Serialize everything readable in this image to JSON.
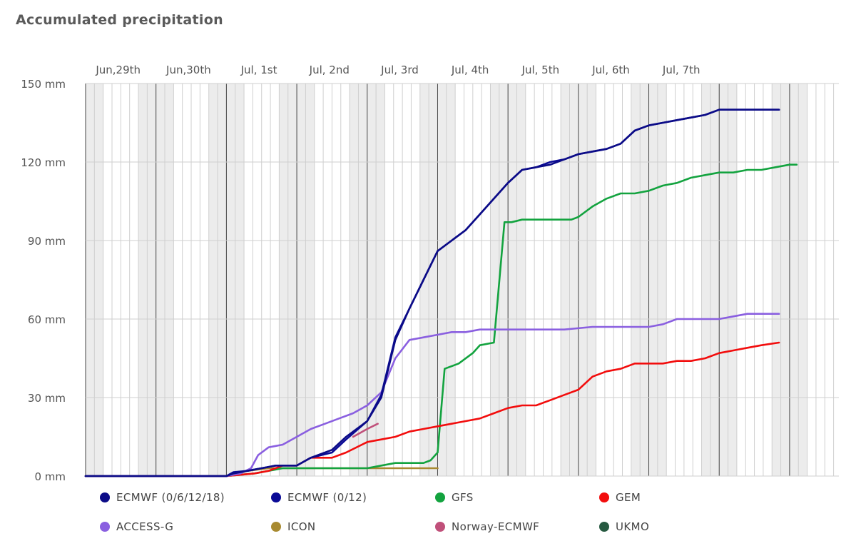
{
  "chart_data": {
    "type": "line",
    "title": "Accumulated precipitation",
    "ylim": [
      0,
      150
    ],
    "yticks": [
      0,
      30,
      60,
      90,
      120,
      150
    ],
    "ytick_labels": [
      "0 mm",
      "30 mm",
      "60 mm",
      "90 mm",
      "120 mm",
      "150 mm"
    ],
    "xlim": [
      -1,
      9.7
    ],
    "day_labels": [
      {
        "x": 0,
        "label": "Jun,29th"
      },
      {
        "x": 1,
        "label": "Jun,30th"
      },
      {
        "x": 2,
        "label": "Jul, 1st"
      },
      {
        "x": 3,
        "label": "Jul, 2nd"
      },
      {
        "x": 4,
        "label": "Jul, 3rd"
      },
      {
        "x": 5,
        "label": "Jul, 4th"
      },
      {
        "x": 6,
        "label": "Jul, 5th"
      },
      {
        "x": 7,
        "label": "Jul, 6th"
      },
      {
        "x": 8,
        "label": "Jul, 7th"
      }
    ],
    "series": [
      {
        "name": "ECMWF (0/6/12/18)",
        "color": "#0b0b87",
        "x": [
          -1,
          1.0,
          1.1,
          1.3,
          1.5,
          1.7,
          2.0,
          2.2,
          2.5,
          2.7,
          3.0,
          3.2,
          3.4,
          3.6,
          3.8,
          4.0,
          4.2,
          4.4,
          4.6,
          4.8,
          5.0,
          5.2,
          5.4,
          5.6,
          5.8,
          6.0,
          6.2,
          6.4,
          6.6,
          6.8,
          7.0,
          7.2,
          7.4,
          7.6,
          7.8,
          8.0,
          8.2,
          8.4,
          8.6,
          8.85
        ],
        "y": [
          0,
          0,
          1,
          2,
          3,
          4,
          4,
          7,
          10,
          15,
          21,
          30,
          52,
          64,
          75,
          86,
          90,
          94,
          100,
          106,
          112,
          117,
          118,
          119,
          121,
          123,
          124,
          125,
          127,
          132,
          134,
          135,
          136,
          137,
          138,
          140,
          140,
          140,
          140,
          140
        ]
      },
      {
        "name": "ECMWF (0/12)",
        "color": "#0a0a96",
        "x": [
          -1,
          1.0,
          1.1,
          1.3,
          1.5,
          1.7,
          2.0,
          2.2,
          2.5,
          2.7,
          3.0,
          3.2,
          3.4,
          3.6,
          3.8,
          4.0,
          4.2,
          4.4,
          4.6,
          4.8,
          5.0,
          5.2,
          5.4,
          5.6,
          5.8,
          6.0,
          6.2,
          6.4,
          6.6,
          6.8,
          7.0,
          7.2,
          7.4,
          7.6,
          7.8,
          8.0,
          8.2,
          8.4,
          8.6,
          8.85
        ],
        "y": [
          0,
          0,
          1.5,
          2,
          3,
          4,
          4,
          7,
          9,
          14,
          21,
          31,
          53,
          64,
          75,
          86,
          90,
          94,
          100,
          106,
          112,
          117,
          118,
          120,
          121,
          123,
          124,
          125,
          127,
          132,
          134,
          135,
          136,
          137,
          138,
          140,
          140,
          140,
          140,
          140
        ]
      },
      {
        "name": "GFS",
        "color": "#13a33f",
        "x": [
          -1,
          1.0,
          1.2,
          1.4,
          1.6,
          1.8,
          2.0,
          2.5,
          3.0,
          3.2,
          3.4,
          3.6,
          3.8,
          3.9,
          4.0,
          4.1,
          4.3,
          4.5,
          4.6,
          4.8,
          4.95,
          5.05,
          5.2,
          5.35,
          5.5,
          5.7,
          5.9,
          6.0,
          6.2,
          6.4,
          6.6,
          6.8,
          7.0,
          7.2,
          7.4,
          7.6,
          7.8,
          8.0,
          8.2,
          8.4,
          8.6,
          8.8,
          9.0,
          9.1
        ],
        "y": [
          0,
          0,
          0.5,
          1,
          2,
          3,
          3,
          3,
          3,
          4,
          5,
          5,
          5,
          6,
          9,
          41,
          43,
          47,
          50,
          51,
          97,
          97,
          98,
          98,
          98,
          98,
          98,
          99,
          103,
          106,
          108,
          108,
          109,
          111,
          112,
          114,
          115,
          116,
          116,
          117,
          117,
          118,
          119,
          119
        ]
      },
      {
        "name": "GEM",
        "color": "#f20d0d",
        "x": [
          -1,
          1.0,
          1.2,
          1.4,
          1.6,
          1.8,
          2.0,
          2.2,
          2.5,
          2.7,
          3.0,
          3.2,
          3.4,
          3.6,
          3.8,
          4.0,
          4.2,
          4.4,
          4.6,
          4.8,
          5.0,
          5.2,
          5.4,
          5.6,
          5.8,
          6.0,
          6.2,
          6.4,
          6.6,
          6.8,
          7.0,
          7.2,
          7.4,
          7.6,
          7.8,
          8.0,
          8.2,
          8.4,
          8.6,
          8.85
        ],
        "y": [
          0,
          0,
          0.5,
          1,
          2,
          4,
          4,
          7,
          7,
          9,
          13,
          14,
          15,
          17,
          18,
          19,
          20,
          21,
          22,
          24,
          26,
          27,
          27,
          29,
          31,
          33,
          38,
          40,
          41,
          43,
          43,
          43,
          44,
          44,
          45,
          47,
          48,
          49,
          50,
          51
        ]
      },
      {
        "name": "ACCESS-G",
        "color": "#8a5fe0",
        "x": [
          -1,
          1.0,
          1.2,
          1.35,
          1.45,
          1.6,
          1.8,
          2.0,
          2.2,
          2.4,
          2.6,
          2.8,
          3.0,
          3.2,
          3.4,
          3.6,
          3.8,
          4.0,
          4.2,
          4.4,
          4.6,
          4.8,
          5.0,
          5.4,
          5.8,
          6.2,
          6.6,
          7.0,
          7.2,
          7.4,
          7.6,
          7.8,
          8.0,
          8.2,
          8.4,
          8.6,
          8.85
        ],
        "y": [
          0,
          0,
          1,
          3,
          8,
          11,
          12,
          15,
          18,
          20,
          22,
          24,
          27,
          32,
          45,
          52,
          53,
          54,
          55,
          55,
          56,
          56,
          56,
          56,
          56,
          57,
          57,
          57,
          58,
          60,
          60,
          60,
          60,
          61,
          62,
          62,
          62
        ]
      },
      {
        "name": "ICON",
        "color": "#a88a30",
        "x": [
          -1,
          1.0,
          1.3,
          1.6,
          2.0,
          2.5,
          3.0,
          3.5,
          4.0
        ],
        "y": [
          0,
          0,
          2,
          3,
          3,
          3,
          3,
          3,
          3
        ]
      },
      {
        "name": "Norway-ECMWF",
        "color": "#c0507a",
        "x": [
          2.8,
          3.0,
          3.15
        ],
        "y": [
          15,
          18,
          20
        ]
      },
      {
        "name": "UKMO",
        "color": "#265940",
        "x": [],
        "y": []
      }
    ],
    "legend": [
      {
        "name": "ECMWF (0/6/12/18)",
        "color": "#0b0b87"
      },
      {
        "name": "ECMWF (0/12)",
        "color": "#0a0a96"
      },
      {
        "name": "GFS",
        "color": "#13a33f"
      },
      {
        "name": "GEM",
        "color": "#f20d0d"
      },
      {
        "name": "ACCESS-G",
        "color": "#8a5fe0"
      },
      {
        "name": "ICON",
        "color": "#a88a30"
      },
      {
        "name": "Norway-ECMWF",
        "color": "#c0507a"
      },
      {
        "name": "UKMO",
        "color": "#265940"
      }
    ]
  }
}
